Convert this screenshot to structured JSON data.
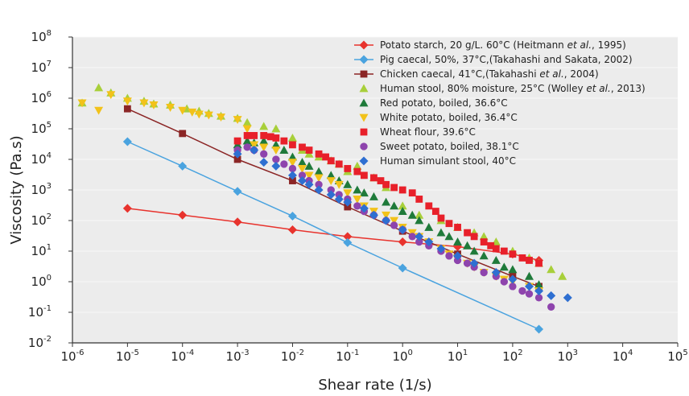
{
  "chart_data": {
    "type": "scatter",
    "xlabel": "Shear rate (1/s)",
    "ylabel": "Viscosity (Pa.s)",
    "x_scale": "log",
    "y_scale": "log",
    "xlim": [
      1e-06,
      100000.0
    ],
    "ylim": [
      0.01,
      100000000.0
    ],
    "x_ticks": [
      {
        "value": 1e-06,
        "base": "10",
        "exp": "-6"
      },
      {
        "value": 1e-05,
        "base": "10",
        "exp": "-5"
      },
      {
        "value": 0.0001,
        "base": "10",
        "exp": "-4"
      },
      {
        "value": 0.001,
        "base": "10",
        "exp": "-3"
      },
      {
        "value": 0.01,
        "base": "10",
        "exp": "-2"
      },
      {
        "value": 0.1,
        "base": "10",
        "exp": "-1"
      },
      {
        "value": 1,
        "base": "10",
        "exp": "0"
      },
      {
        "value": 10,
        "base": "10",
        "exp": "1"
      },
      {
        "value": 100,
        "base": "10",
        "exp": "2"
      },
      {
        "value": 1000,
        "base": "10",
        "exp": "3"
      },
      {
        "value": 10000,
        "base": "10",
        "exp": "4"
      },
      {
        "value": 100000,
        "base": "10",
        "exp": "5"
      }
    ],
    "y_ticks": [
      {
        "value": 0.01,
        "base": "10",
        "exp": "-2"
      },
      {
        "value": 0.1,
        "base": "10",
        "exp": "-1"
      },
      {
        "value": 1,
        "base": "10",
        "exp": "0"
      },
      {
        "value": 10,
        "base": "10",
        "exp": "1"
      },
      {
        "value": 100,
        "base": "10",
        "exp": "2"
      },
      {
        "value": 1000,
        "base": "10",
        "exp": "3"
      },
      {
        "value": 10000,
        "base": "10",
        "exp": "4"
      },
      {
        "value": 100000,
        "base": "10",
        "exp": "5"
      },
      {
        "value": 1000000,
        "base": "10",
        "exp": "6"
      },
      {
        "value": 10000000,
        "base": "10",
        "exp": "7"
      },
      {
        "value": 100000000,
        "base": "10",
        "exp": "8"
      }
    ],
    "grid": true,
    "legend_position": "top-right",
    "series": [
      {
        "name": "Potato starch, 20 g/L. 60°C (Heitmann et al., 1995)",
        "legend_parts": [
          {
            "text": "Potato starch, 20 g/L. 60°C (Heitmann "
          },
          {
            "text": "et al.",
            "italic": true
          },
          {
            "text": ", 1995)"
          }
        ],
        "color": "#e8332d",
        "marker": "diamond",
        "line": true,
        "points": [
          [
            1e-05,
            250
          ],
          [
            0.0001,
            150
          ],
          [
            0.001,
            90
          ],
          [
            0.01,
            50
          ],
          [
            0.1,
            30
          ],
          [
            1,
            20
          ],
          [
            10,
            14
          ],
          [
            100,
            8
          ],
          [
            300,
            5
          ]
        ]
      },
      {
        "name": "Pig caecal, 50%, 37°C,(Takahashi and Sakata, 2002)",
        "legend_parts": [
          {
            "text": "Pig caecal, 50%, 37°C,(Takahashi and Sakata, 2002)"
          }
        ],
        "color": "#4aa3df",
        "marker": "diamond",
        "line": true,
        "points": [
          [
            1e-05,
            38000
          ],
          [
            0.0001,
            6000
          ],
          [
            0.001,
            900
          ],
          [
            0.01,
            140
          ],
          [
            0.1,
            19
          ],
          [
            1,
            2.8
          ],
          [
            300,
            0.028
          ]
        ]
      },
      {
        "name": "Chicken caecal, 41°C,(Takahashi et al., 2004)",
        "legend_parts": [
          {
            "text": "Chicken caecal, 41°C,(Takahashi "
          },
          {
            "text": "et al.",
            "italic": true
          },
          {
            "text": ", 2004)"
          }
        ],
        "color": "#8b2525",
        "marker": "square",
        "line": true,
        "points": [
          [
            1e-05,
            450000
          ],
          [
            0.0001,
            70000
          ],
          [
            0.001,
            10000
          ],
          [
            0.01,
            2000
          ],
          [
            0.1,
            280
          ],
          [
            1,
            45
          ],
          [
            10,
            8
          ],
          [
            100,
            1.5
          ],
          [
            300,
            0.7
          ]
        ]
      },
      {
        "name": "Human stool, 80% moisture, 25°C (Wolley et al., 2013)",
        "legend_parts": [
          {
            "text": "Human stool, 80% moisture, 25°C (Wolley "
          },
          {
            "text": "et al.",
            "italic": true
          },
          {
            "text": ", 2013)"
          }
        ],
        "color": "#a8cf3a",
        "marker": "triangle",
        "line": false,
        "points": [
          [
            1.5e-06,
            700000
          ],
          [
            3e-06,
            2200000
          ],
          [
            5e-06,
            1500000
          ],
          [
            1e-05,
            1000000
          ],
          [
            2e-05,
            800000
          ],
          [
            3e-05,
            650000
          ],
          [
            6e-05,
            600000
          ],
          [
            0.00012,
            450000
          ],
          [
            0.0002,
            380000
          ],
          [
            0.0003,
            320000
          ],
          [
            0.0005,
            260000
          ],
          [
            0.001,
            220000
          ],
          [
            0.0015,
            160000
          ],
          [
            0.003,
            120000
          ],
          [
            0.005,
            100000
          ],
          [
            0.01,
            50000
          ],
          [
            0.015,
            20000
          ],
          [
            0.02,
            15000
          ],
          [
            0.03,
            12000
          ],
          [
            0.05,
            9000
          ],
          [
            0.07,
            7000
          ],
          [
            0.1,
            4000
          ],
          [
            0.15,
            6000
          ],
          [
            0.3,
            2500
          ],
          [
            0.5,
            1200
          ],
          [
            1,
            300
          ],
          [
            2,
            150
          ],
          [
            5,
            100
          ],
          [
            10,
            60
          ],
          [
            20,
            40
          ],
          [
            30,
            30
          ],
          [
            50,
            20
          ],
          [
            100,
            10
          ],
          [
            200,
            6
          ],
          [
            300,
            4
          ],
          [
            500,
            2.5
          ],
          [
            800,
            1.5
          ]
        ]
      },
      {
        "name": "Red potato, boiled, 36.6°C",
        "legend_parts": [
          {
            "text": "Red potato, boiled, 36.6°C"
          }
        ],
        "color": "#1f7a3a",
        "marker": "triangle",
        "line": false,
        "points": [
          [
            0.001,
            30000
          ],
          [
            0.0015,
            40000
          ],
          [
            0.002,
            35000
          ],
          [
            0.003,
            40000
          ],
          [
            0.005,
            30000
          ],
          [
            0.007,
            20000
          ],
          [
            0.01,
            12000
          ],
          [
            0.015,
            8000
          ],
          [
            0.02,
            6000
          ],
          [
            0.03,
            4000
          ],
          [
            0.05,
            3000
          ],
          [
            0.07,
            2000
          ],
          [
            0.1,
            1500
          ],
          [
            0.15,
            1000
          ],
          [
            0.2,
            800
          ],
          [
            0.3,
            600
          ],
          [
            0.5,
            400
          ],
          [
            0.7,
            300
          ],
          [
            1,
            200
          ],
          [
            1.5,
            150
          ],
          [
            2,
            100
          ],
          [
            3,
            60
          ],
          [
            5,
            40
          ],
          [
            7,
            30
          ],
          [
            10,
            20
          ],
          [
            15,
            15
          ],
          [
            20,
            10
          ],
          [
            30,
            7
          ],
          [
            50,
            5
          ],
          [
            70,
            3
          ],
          [
            100,
            2.5
          ],
          [
            200,
            1.5
          ],
          [
            300,
            0.8
          ]
        ]
      },
      {
        "name": "White potato, boiled, 36.4°C",
        "legend_parts": [
          {
            "text": "White potato, boiled, 36.4°C"
          }
        ],
        "color": "#f2c21a",
        "marker": "triangle-down",
        "line": false,
        "points": [
          [
            1.5e-06,
            700000
          ],
          [
            3e-06,
            400000
          ],
          [
            5e-06,
            1300000
          ],
          [
            1e-05,
            800000
          ],
          [
            2e-05,
            700000
          ],
          [
            3e-05,
            600000
          ],
          [
            6e-05,
            500000
          ],
          [
            0.0001,
            400000
          ],
          [
            0.00015,
            350000
          ],
          [
            0.0002,
            300000
          ],
          [
            0.0003,
            280000
          ],
          [
            0.0005,
            240000
          ],
          [
            0.001,
            200000
          ],
          [
            0.0015,
            100000
          ],
          [
            0.002,
            30000
          ],
          [
            0.003,
            25000
          ],
          [
            0.005,
            20000
          ],
          [
            0.01,
            8000
          ],
          [
            0.015,
            5000
          ],
          [
            0.02,
            3000
          ],
          [
            0.03,
            2500
          ],
          [
            0.05,
            2000
          ],
          [
            0.07,
            1500
          ],
          [
            0.1,
            800
          ],
          [
            0.15,
            500
          ],
          [
            0.2,
            300
          ],
          [
            0.3,
            200
          ],
          [
            0.5,
            150
          ],
          [
            0.7,
            100
          ],
          [
            1,
            60
          ],
          [
            1.5,
            40
          ],
          [
            2,
            30
          ],
          [
            3,
            20
          ],
          [
            5,
            12
          ],
          [
            7,
            8
          ],
          [
            10,
            6
          ],
          [
            15,
            4
          ],
          [
            20,
            3
          ],
          [
            30,
            2
          ],
          [
            50,
            1.5
          ],
          [
            70,
            1.2
          ],
          [
            100,
            1
          ],
          [
            200,
            0.7
          ],
          [
            300,
            0.5
          ]
        ]
      },
      {
        "name": "Wheat flour, 39.6°C",
        "legend_parts": [
          {
            "text": "Wheat flour, 39.6°C"
          }
        ],
        "color": "#e8202a",
        "marker": "square",
        "line": false,
        "points": [
          [
            0.001,
            40000
          ],
          [
            0.0015,
            60000
          ],
          [
            0.002,
            60000
          ],
          [
            0.003,
            60000
          ],
          [
            0.004,
            55000
          ],
          [
            0.005,
            50000
          ],
          [
            0.007,
            40000
          ],
          [
            0.01,
            30000
          ],
          [
            0.015,
            25000
          ],
          [
            0.02,
            20000
          ],
          [
            0.03,
            15000
          ],
          [
            0.04,
            12000
          ],
          [
            0.05,
            9000
          ],
          [
            0.07,
            7000
          ],
          [
            0.1,
            5000
          ],
          [
            0.15,
            4000
          ],
          [
            0.2,
            3000
          ],
          [
            0.3,
            2500
          ],
          [
            0.4,
            2000
          ],
          [
            0.5,
            1500
          ],
          [
            0.7,
            1200
          ],
          [
            1,
            1000
          ],
          [
            1.5,
            800
          ],
          [
            2,
            500
          ],
          [
            3,
            300
          ],
          [
            4,
            200
          ],
          [
            5,
            120
          ],
          [
            7,
            80
          ],
          [
            10,
            60
          ],
          [
            15,
            40
          ],
          [
            20,
            30
          ],
          [
            30,
            20
          ],
          [
            40,
            15
          ],
          [
            50,
            12
          ],
          [
            70,
            10
          ],
          [
            100,
            8
          ],
          [
            150,
            6
          ],
          [
            200,
            5
          ],
          [
            300,
            4
          ]
        ]
      },
      {
        "name": "Sweet potato, boiled, 38.1°C",
        "legend_parts": [
          {
            "text": "Sweet potato, boiled, 38.1°C"
          }
        ],
        "color": "#8e44ad",
        "marker": "circle",
        "line": false,
        "points": [
          [
            0.001,
            20000
          ],
          [
            0.0015,
            25000
          ],
          [
            0.002,
            20000
          ],
          [
            0.003,
            15000
          ],
          [
            0.005,
            10000
          ],
          [
            0.007,
            7000
          ],
          [
            0.01,
            5000
          ],
          [
            0.015,
            3000
          ],
          [
            0.02,
            2000
          ],
          [
            0.03,
            1500
          ],
          [
            0.05,
            1000
          ],
          [
            0.07,
            700
          ],
          [
            0.1,
            500
          ],
          [
            0.15,
            300
          ],
          [
            0.2,
            200
          ],
          [
            0.3,
            150
          ],
          [
            0.5,
            100
          ],
          [
            0.7,
            70
          ],
          [
            1,
            50
          ],
          [
            1.5,
            30
          ],
          [
            2,
            20
          ],
          [
            3,
            15
          ],
          [
            5,
            10
          ],
          [
            7,
            7
          ],
          [
            10,
            5
          ],
          [
            15,
            4
          ],
          [
            20,
            3
          ],
          [
            30,
            2
          ],
          [
            50,
            1.5
          ],
          [
            70,
            1
          ],
          [
            100,
            0.7
          ],
          [
            150,
            0.5
          ],
          [
            200,
            0.4
          ],
          [
            300,
            0.3
          ],
          [
            500,
            0.15
          ]
        ]
      },
      {
        "name": "Human simulant stool, 40°C",
        "legend_parts": [
          {
            "text": "Human simulant stool, 40°C"
          }
        ],
        "color": "#2e6fd1",
        "marker": "diamond",
        "line": false,
        "points": [
          [
            0.001,
            15000
          ],
          [
            0.002,
            20000
          ],
          [
            0.003,
            8000
          ],
          [
            0.005,
            6000
          ],
          [
            0.01,
            3000
          ],
          [
            0.015,
            2000
          ],
          [
            0.02,
            1500
          ],
          [
            0.03,
            1000
          ],
          [
            0.05,
            700
          ],
          [
            0.07,
            500
          ],
          [
            0.1,
            400
          ],
          [
            0.2,
            250
          ],
          [
            0.3,
            150
          ],
          [
            0.5,
            100
          ],
          [
            1,
            50
          ],
          [
            2,
            30
          ],
          [
            3,
            20
          ],
          [
            5,
            12
          ],
          [
            10,
            7
          ],
          [
            20,
            4
          ],
          [
            50,
            2
          ],
          [
            100,
            1.2
          ],
          [
            200,
            0.7
          ],
          [
            300,
            0.5
          ],
          [
            500,
            0.35
          ],
          [
            1000,
            0.3
          ]
        ]
      }
    ]
  }
}
